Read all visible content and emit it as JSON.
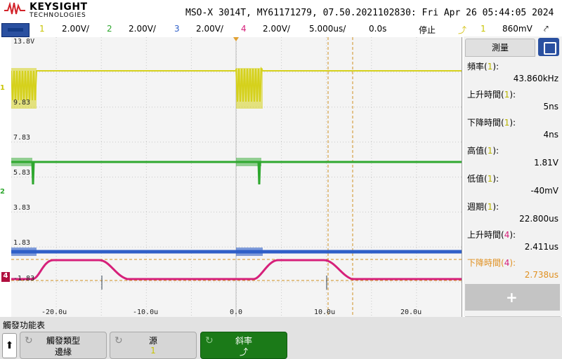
{
  "header": {
    "brand": "KEYSIGHT",
    "brand_sub": "TECHNOLOGIES",
    "title": "MSO-X 3014T, MY61171279, 07.50.2021102830: Fri Apr 26 05:44:05 2024"
  },
  "statusbar": {
    "ch1_num": "1",
    "ch1_scale": "2.00V/",
    "ch2_num": "2",
    "ch2_scale": "2.00V/",
    "ch3_num": "3",
    "ch3_scale": "2.00V/",
    "ch4_num": "4",
    "ch4_scale": "2.00V/",
    "timebase": "5.000us/",
    "delay": "0.0s",
    "run_state": "停止",
    "trig_icon": "trigger-edge-icon",
    "trig_ch": "1",
    "trig_level": "860mV",
    "trig_sym": "⤤"
  },
  "plot": {
    "y_labels": [
      "13.8V",
      "9.83",
      "7.83",
      "5.83",
      "3.83",
      "1.83",
      "-1.83"
    ],
    "x_labels": [
      "-20.0u",
      "-10.0u",
      "0.0",
      "10.0u",
      "20.0u"
    ],
    "ch_markers": [
      "1",
      "2",
      "3",
      "4"
    ],
    "colors": {
      "ch1": "#d6d11c",
      "ch2": "#2fa82f",
      "ch3": "#2f5fc8",
      "ch4": "#d6207a",
      "cursor": "#e0a030",
      "ruler": "#d09020"
    }
  },
  "panel": {
    "tab_label": "測量",
    "measurements": [
      {
        "label": "頻率",
        "ch": "1",
        "value": "43.860kHz",
        "color": "#000000"
      },
      {
        "label": "上升時間",
        "ch": "1",
        "value": "5ns",
        "color": "#000000"
      },
      {
        "label": "下降時間",
        "ch": "1",
        "value": "4ns",
        "color": "#000000"
      },
      {
        "label": "高值",
        "ch": "1",
        "value": "1.81V",
        "color": "#000000"
      },
      {
        "label": "低值",
        "ch": "1",
        "value": "-40mV",
        "color": "#000000"
      },
      {
        "label": "週期",
        "ch": "1",
        "value": "22.800us",
        "color": "#000000"
      },
      {
        "label": "上升時間",
        "ch": "4",
        "value": "2.411us",
        "color": "#000000"
      },
      {
        "label": "下降時間",
        "ch": "4",
        "value": "2.738us",
        "color": "#e09020"
      }
    ],
    "plus": "+"
  },
  "softkeys": {
    "title": "觸發功能表",
    "up": "🡅",
    "keys": [
      {
        "l1": "觸發類型",
        "l2": "邊緣"
      },
      {
        "l1": "源",
        "l2": "1"
      },
      {
        "l1": "斜率",
        "l2": "⤴"
      }
    ]
  }
}
